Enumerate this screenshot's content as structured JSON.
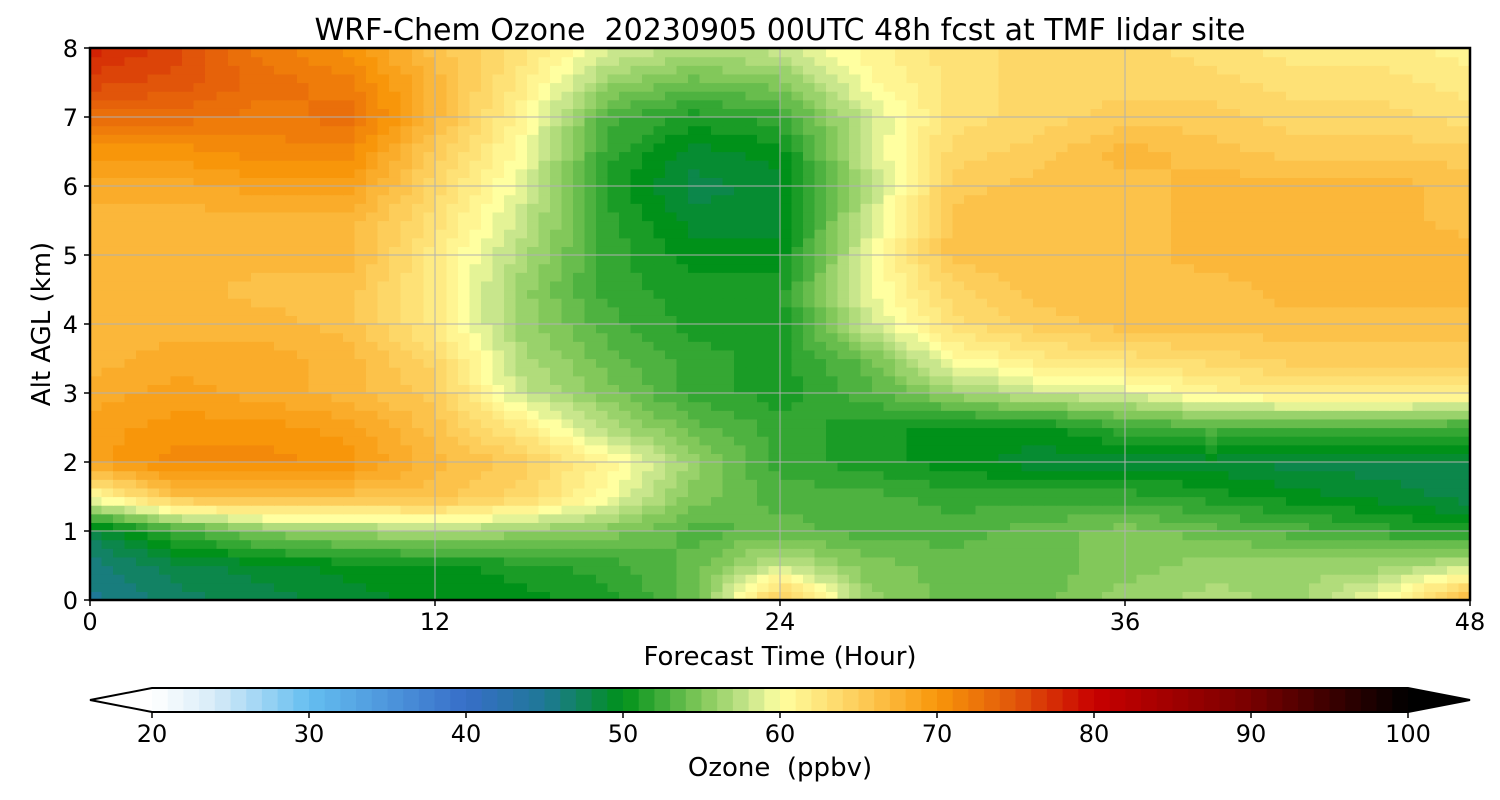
{
  "chart_data": {
    "type": "heatmap",
    "title": "WRF-Chem Ozone  20230905 00UTC 48h fcst at TMF lidar site",
    "xlabel": "Forecast Time (Hour)",
    "ylabel": "Alt AGL (km)",
    "xlim": [
      0,
      48
    ],
    "ylim": [
      0,
      8
    ],
    "xticks": [
      0,
      12,
      24,
      36,
      48
    ],
    "yticks": [
      0,
      1,
      2,
      3,
      4,
      5,
      6,
      7,
      8
    ],
    "grid": true,
    "x": [
      0,
      3,
      6,
      9,
      12,
      15,
      18,
      21,
      24,
      27,
      30,
      33,
      36,
      39,
      42,
      45,
      48
    ],
    "y": [
      0,
      0.5,
      1,
      1.5,
      2,
      2.5,
      3,
      3.5,
      4,
      4.5,
      5,
      5.5,
      6,
      6.5,
      7,
      7.5,
      8
    ],
    "z": [
      [
        45,
        47,
        48,
        49,
        50,
        50,
        51,
        54,
        66,
        56,
        54,
        54,
        56,
        57,
        56,
        60,
        68
      ],
      [
        46,
        48,
        49,
        50,
        50,
        51,
        52,
        54,
        58,
        55,
        54,
        54,
        55,
        56,
        56,
        56,
        58
      ],
      [
        48,
        52,
        55,
        56,
        57,
        56,
        55,
        53,
        54,
        53,
        53,
        54,
        55,
        54,
        53,
        52,
        51
      ],
      [
        60,
        66,
        67,
        66,
        66,
        64,
        60,
        55,
        53,
        53,
        52,
        52,
        52,
        51,
        50,
        49,
        48
      ],
      [
        69,
        71,
        71,
        70,
        67,
        65,
        61,
        56,
        52,
        51,
        50,
        49,
        49,
        49,
        48,
        48,
        48
      ],
      [
        69,
        70,
        70,
        69,
        66,
        62,
        57,
        54,
        52,
        51,
        50,
        50,
        52,
        53,
        53,
        53,
        52
      ],
      [
        68,
        69,
        68,
        67,
        65,
        58,
        55,
        52,
        51,
        53,
        56,
        58,
        59,
        61,
        62,
        62,
        62
      ],
      [
        67,
        68,
        68,
        67,
        64,
        57,
        54,
        52,
        51,
        54,
        60,
        62,
        63,
        64,
        65,
        65,
        65
      ],
      [
        67,
        67,
        67,
        66,
        62,
        56,
        53,
        51,
        51,
        58,
        63,
        65,
        66,
        66,
        66,
        66,
        66
      ],
      [
        67,
        67,
        66,
        66,
        62,
        56,
        52,
        51,
        51,
        59,
        64,
        66,
        66,
        66,
        67,
        67,
        67
      ],
      [
        67,
        67,
        67,
        67,
        62,
        57,
        52,
        50,
        50,
        59,
        66,
        66,
        66,
        67,
        67,
        67,
        67
      ],
      [
        67,
        67,
        67,
        67,
        63,
        58,
        52,
        49,
        49,
        58,
        66,
        66,
        66,
        67,
        67,
        67,
        66
      ],
      [
        68,
        68,
        69,
        69,
        64,
        59,
        51,
        48,
        49,
        57,
        65,
        66,
        66,
        67,
        67,
        67,
        66
      ],
      [
        70,
        70,
        71,
        71,
        65,
        60,
        52,
        49,
        50,
        58,
        64,
        65,
        67,
        66,
        65,
        65,
        65
      ],
      [
        73,
        73,
        72,
        73,
        67,
        61,
        53,
        51,
        52,
        58,
        63,
        64,
        65,
        65,
        64,
        64,
        63
      ],
      [
        76,
        75,
        73,
        72,
        67,
        62,
        56,
        54,
        55,
        60,
        63,
        64,
        64,
        64,
        63,
        63,
        62
      ],
      [
        78,
        76,
        72,
        70,
        66,
        63,
        59,
        57,
        58,
        61,
        63,
        64,
        64,
        63,
        62,
        62,
        61
      ]
    ],
    "colorbar": {
      "label": "Ozone  (ppbv)",
      "min": 20,
      "max": 100,
      "step": 1,
      "ticks": [
        20,
        30,
        40,
        50,
        60,
        70,
        80,
        90,
        100
      ],
      "extend": "both"
    }
  }
}
